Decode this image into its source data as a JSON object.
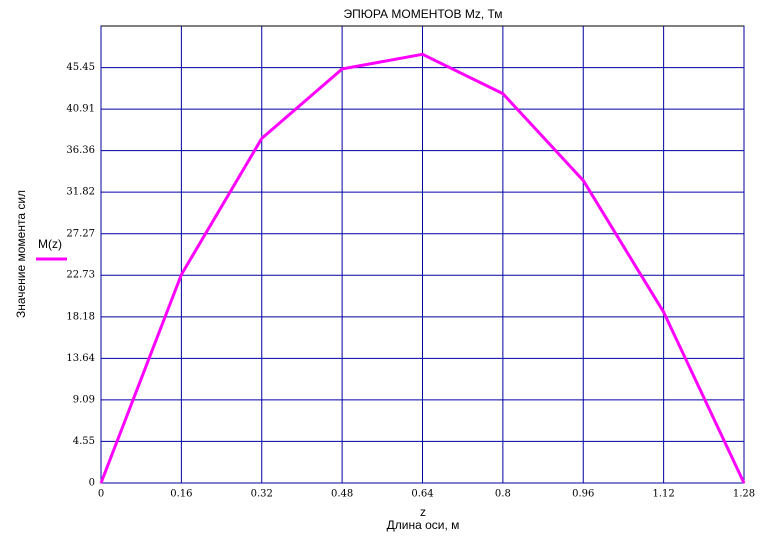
{
  "chart_data": {
    "type": "line",
    "title": "ЭПЮРА МОМЕНТОВ Mz, Тм",
    "y_label": "Значение момента сил",
    "x_label": "z",
    "x_caption": "Длина оси, м",
    "x": [
      0,
      0.16,
      0.32,
      0.48,
      0.64,
      0.8,
      0.96,
      1.12,
      1.28
    ],
    "series": [
      {
        "name": "M(z)",
        "color": "#ff00ff",
        "values": [
          0,
          22.8,
          37.7,
          45.3,
          46.9,
          42.6,
          33.1,
          18.7,
          0
        ]
      }
    ],
    "xlim": [
      0,
      1.28
    ],
    "xticks": [
      0,
      0.16,
      0.32,
      0.48,
      0.64,
      0.8,
      0.96,
      1.12,
      1.28
    ],
    "ylim": [
      0,
      50
    ],
    "yticks": [
      0,
      4.55,
      9.09,
      13.64,
      18.18,
      22.73,
      27.27,
      31.82,
      36.36,
      40.91,
      45.45
    ],
    "grid": true,
    "grid_color": "#0000a0"
  }
}
